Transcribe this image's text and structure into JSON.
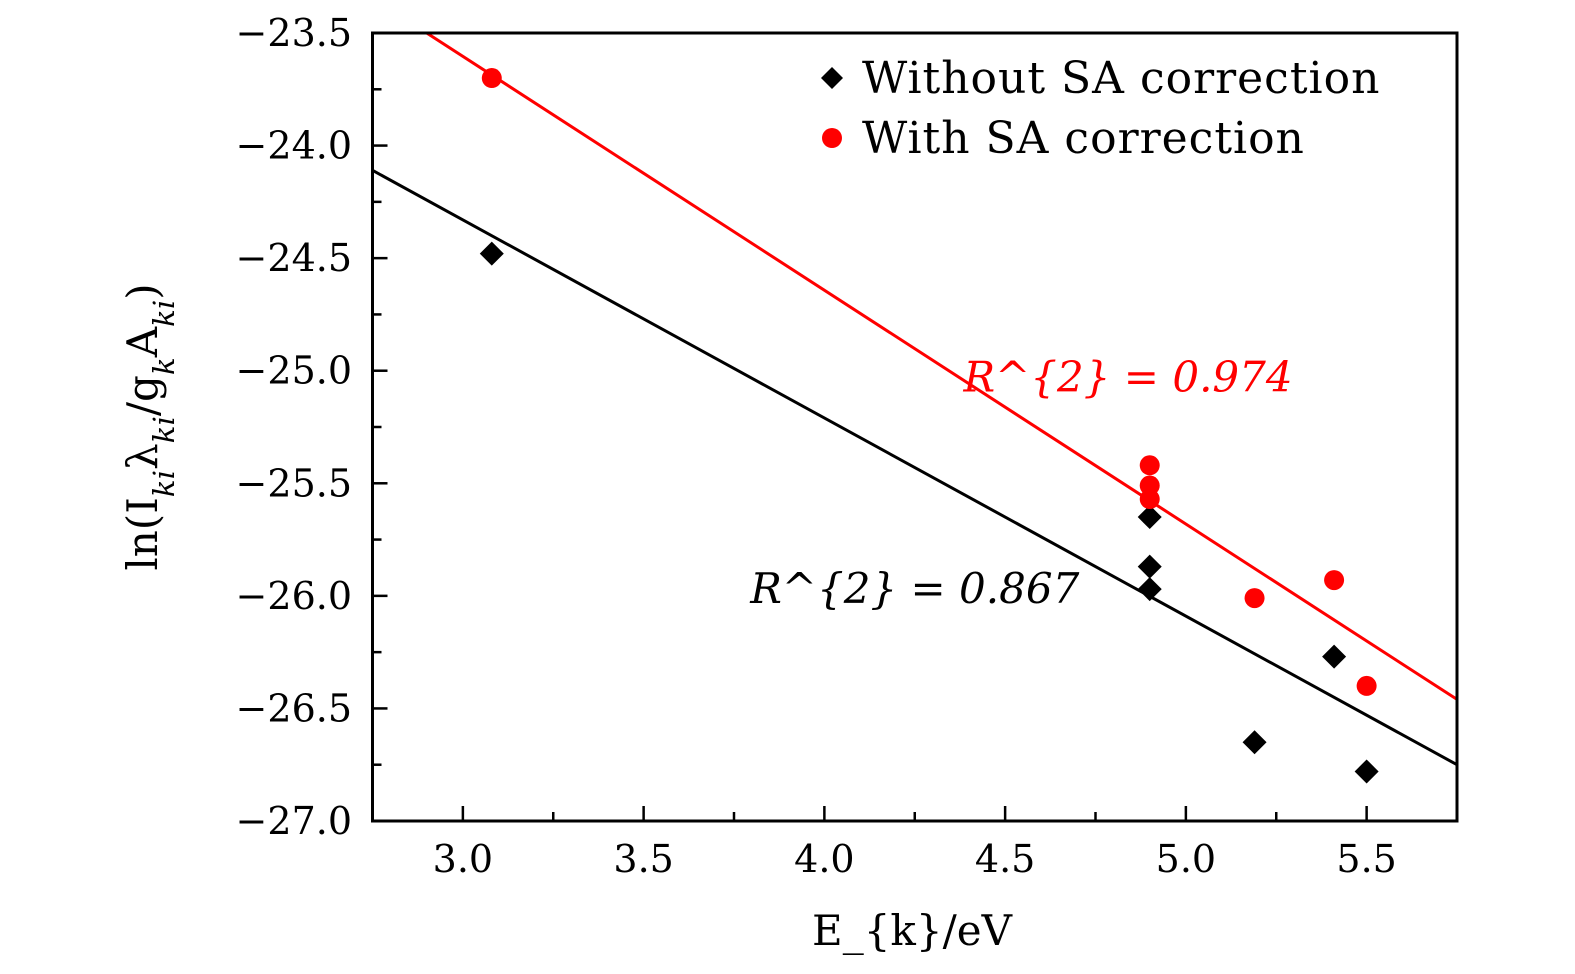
{
  "chart_data": {
    "type": "scatter",
    "title": "",
    "xlabel": "E_{k}/eV",
    "ylabel": "ln(I_{ki}λ_{ki}/g_{k}A_{ki})",
    "xlim": [
      2.75,
      5.75
    ],
    "ylim": [
      -27.0,
      -23.5
    ],
    "xticks": [
      "3.0",
      "3.5",
      "4.0",
      "4.5",
      "5.0",
      "5.5"
    ],
    "yticks": [
      "−23.5",
      "−24.0",
      "−24.5",
      "−25.0",
      "−25.5",
      "−26.0",
      "−26.5",
      "−27.0"
    ],
    "grid": false,
    "legend_position": "top-right",
    "series": [
      {
        "name": "Without SA correction",
        "marker": "diamond",
        "color": "#000000",
        "x": [
          3.08,
          4.9,
          4.9,
          4.9,
          5.19,
          5.41,
          5.5
        ],
        "y": [
          -24.48,
          -25.65,
          -25.87,
          -25.97,
          -26.65,
          -26.27,
          -26.78
        ],
        "fit": {
          "x": [
            2.75,
            5.75
          ],
          "y": [
            -24.11,
            -26.75
          ]
        },
        "annotation": "R^{2} = 0.867",
        "annotation_at": {
          "x": 4.25,
          "y": -25.97
        }
      },
      {
        "name": "With SA correction",
        "marker": "circle",
        "color": "#ff0000",
        "x": [
          3.08,
          4.9,
          4.9,
          4.9,
          5.19,
          5.41,
          5.5
        ],
        "y": [
          -23.7,
          -25.42,
          -25.51,
          -25.57,
          -26.01,
          -25.93,
          -26.4
        ],
        "fit": {
          "x": [
            2.9,
            5.75
          ],
          "y": [
            -23.5,
            -26.46
          ]
        },
        "annotation": "R^{2} = 0.974",
        "annotation_at": {
          "x": 4.84,
          "y": -25.03
        }
      }
    ]
  }
}
